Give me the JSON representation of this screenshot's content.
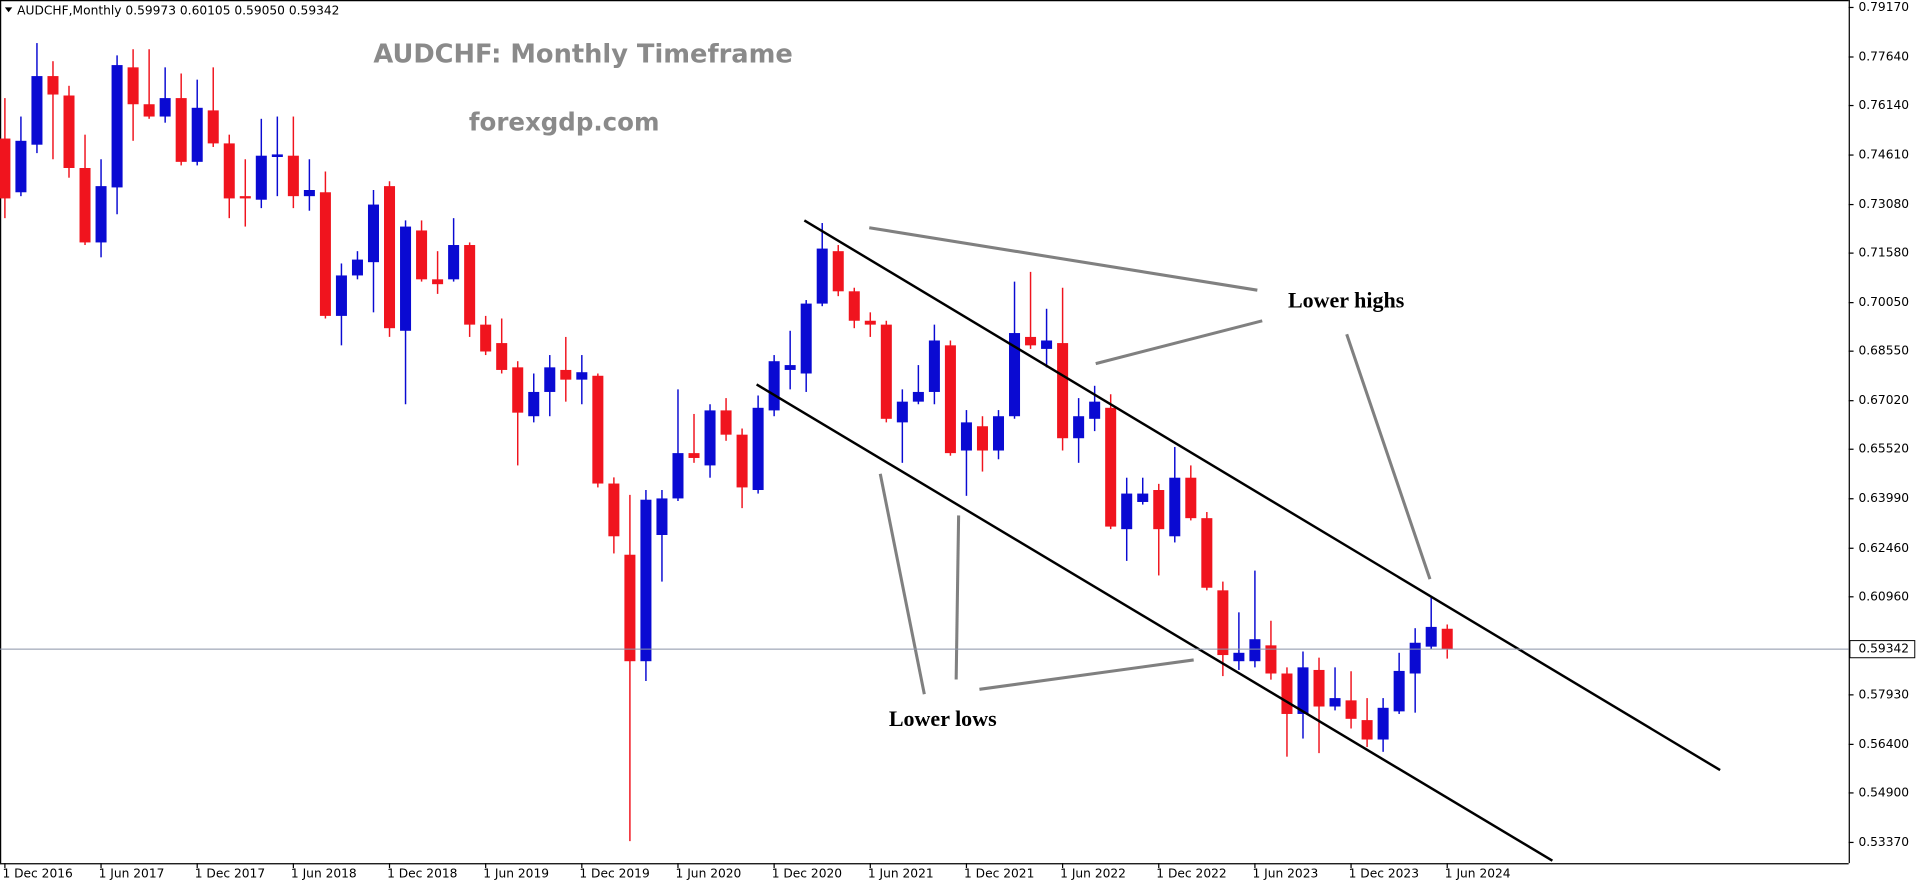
{
  "chart_data": {
    "type": "candlestick",
    "header": "AUDCHF,Monthly  0.59973 0.60105 0.59050 0.59342",
    "title": "AUDCHF: Monthly Timeframe",
    "subtitle": "forexgdp.com",
    "annotations": [
      "Lower highs",
      "Lower lows"
    ],
    "up_color": "#0a0ad2",
    "down_color": "#f0141e",
    "categories": [
      "1 Dec 2016",
      null,
      null,
      null,
      null,
      null,
      "1 Jun 2017",
      null,
      null,
      null,
      null,
      null,
      "1 Dec 2017",
      null,
      null,
      null,
      null,
      null,
      "1 Jun 2018",
      null,
      null,
      null,
      null,
      null,
      "1 Dec 2018",
      null,
      null,
      null,
      null,
      null,
      "1 Jun 2019",
      null,
      null,
      null,
      null,
      null,
      "1 Dec 2019",
      null,
      null,
      null,
      null,
      null,
      "1 Jun 2020",
      null,
      null,
      null,
      null,
      null,
      "1 Dec 2020",
      null,
      null,
      null,
      null,
      null,
      "1 Jun 2021",
      null,
      null,
      null,
      null,
      null,
      "1 Dec 2021",
      null,
      null,
      null,
      null,
      null,
      "1 Jun 2022",
      null,
      null,
      null,
      null,
      null,
      "1 Dec 2022",
      null,
      null,
      null,
      null,
      null,
      "1 Jun 2023",
      null,
      null,
      null,
      null,
      null,
      "1 Dec 2023",
      null,
      null,
      null,
      null,
      null,
      "1 Jun 2024"
    ],
    "open": [
      0.7512,
      0.7346,
      0.7493,
      0.7705,
      0.7645,
      0.7421,
      0.7191,
      0.7361,
      0.7732,
      0.7618,
      0.758,
      0.7637,
      0.744,
      0.7599,
      0.7497,
      0.7334,
      0.7323,
      0.7455,
      0.7459,
      0.7334,
      0.7346,
      0.6964,
      0.7089,
      0.713,
      0.7365,
      0.6918,
      0.7228,
      0.7077,
      0.7077,
      0.7183,
      0.6937,
      0.688,
      0.6805,
      0.6654,
      0.6729,
      0.6797,
      0.6767,
      0.6779,
      0.6446,
      0.6226,
      0.5897,
      0.6287,
      0.64,
      0.654,
      0.6502,
      0.6672,
      0.6597,
      0.6426,
      0.6672,
      0.6797,
      0.6786,
      0.7002,
      0.7164,
      0.704,
      0.6949,
      0.6937,
      0.6635,
      0.6699,
      0.6729,
      0.6873,
      0.6548,
      0.6623,
      0.6548,
      0.6654,
      0.6899,
      0.6862,
      0.688,
      0.6586,
      0.6646,
      0.668,
      0.6305,
      0.6389,
      0.6426,
      0.6283,
      0.6464,
      0.6339,
      0.6116,
      0.5897,
      0.5897,
      0.5946,
      0.5859,
      0.5734,
      0.587,
      0.5757,
      0.5776,
      0.5715,
      0.5655,
      0.5742,
      0.5859,
      0.5942,
      0.59973
    ],
    "high": [
      0.7637,
      0.758,
      0.7807,
      0.7751,
      0.7675,
      0.7524,
      0.7448,
      0.7769,
      0.7788,
      0.7788,
      0.7732,
      0.7713,
      0.7694,
      0.7732,
      0.7524,
      0.7448,
      0.7573,
      0.758,
      0.758,
      0.7448,
      0.741,
      0.7126,
      0.7164,
      0.7353,
      0.738,
      0.7259,
      0.7259,
      0.7164,
      0.7266,
      0.7191,
      0.6964,
      0.6956,
      0.6824,
      0.6786,
      0.6843,
      0.6899,
      0.6843,
      0.6786,
      0.6465,
      0.6411,
      0.6426,
      0.6426,
      0.6737,
      0.6661,
      0.6691,
      0.671,
      0.6616,
      0.6718,
      0.6843,
      0.6918,
      0.7013,
      0.7251,
      0.7183,
      0.7051,
      0.6975,
      0.6949,
      0.6737,
      0.6812,
      0.6937,
      0.6888,
      0.6673,
      0.6654,
      0.6673,
      0.707,
      0.71,
      0.6986,
      0.7051,
      0.671,
      0.6748,
      0.6722,
      0.6464,
      0.6464,
      0.6445,
      0.6559,
      0.6502,
      0.6358,
      0.6143,
      0.6048,
      0.6177,
      0.6022,
      0.5878,
      0.5927,
      0.5908,
      0.5878,
      0.5866,
      0.5783,
      0.5783,
      0.5923,
      0.5999,
      0.6094,
      0.60105
    ],
    "low": [
      0.7266,
      0.7334,
      0.7467,
      0.7448,
      0.7391,
      0.7183,
      0.7145,
      0.7278,
      0.7505,
      0.7573,
      0.7561,
      0.7429,
      0.7429,
      0.7486,
      0.7266,
      0.724,
      0.7297,
      0.7334,
      0.7297,
      0.7289,
      0.6956,
      0.6873,
      0.7077,
      0.6975,
      0.6899,
      0.6691,
      0.707,
      0.7032,
      0.707,
      0.6899,
      0.6843,
      0.6786,
      0.6502,
      0.6635,
      0.6654,
      0.6699,
      0.6691,
      0.6434,
      0.623,
      0.5341,
      0.5836,
      0.6143,
      0.6392,
      0.651,
      0.6464,
      0.6578,
      0.637,
      0.6415,
      0.6654,
      0.6737,
      0.6729,
      0.6994,
      0.7025,
      0.6926,
      0.6899,
      0.6635,
      0.651,
      0.6691,
      0.6691,
      0.6532,
      0.6408,
      0.6483,
      0.6521,
      0.6646,
      0.6862,
      0.6805,
      0.6548,
      0.651,
      0.6608,
      0.6305,
      0.6207,
      0.6381,
      0.6162,
      0.6264,
      0.6332,
      0.6116,
      0.5851,
      0.587,
      0.5878,
      0.584,
      0.5602,
      0.5658,
      0.5613,
      0.5745,
      0.5689,
      0.5632,
      0.5617,
      0.5734,
      0.5738,
      0.5935,
      0.5905
    ],
    "close": [
      0.7327,
      0.7505,
      0.7705,
      0.7648,
      0.7421,
      0.7191,
      0.7365,
      0.7739,
      0.7618,
      0.758,
      0.7637,
      0.744,
      0.7607,
      0.7497,
      0.7327,
      0.7327,
      0.7459,
      0.7463,
      0.7334,
      0.7353,
      0.6964,
      0.7089,
      0.7138,
      0.7308,
      0.6926,
      0.724,
      0.7077,
      0.7062,
      0.7183,
      0.6937,
      0.6854,
      0.6797,
      0.6665,
      0.6729,
      0.6805,
      0.6767,
      0.679,
      0.6446,
      0.6283,
      0.5897,
      0.6396,
      0.64,
      0.654,
      0.6525,
      0.6672,
      0.6597,
      0.6434,
      0.668,
      0.6824,
      0.6812,
      0.7002,
      0.7172,
      0.704,
      0.6949,
      0.6937,
      0.6646,
      0.6699,
      0.6729,
      0.6888,
      0.654,
      0.6635,
      0.6548,
      0.6654,
      0.6911,
      0.6873,
      0.6888,
      0.6586,
      0.6654,
      0.6699,
      0.6313,
      0.6415,
      0.6415,
      0.6305,
      0.6464,
      0.6339,
      0.6124,
      0.5916,
      0.5923,
      0.5965,
      0.5859,
      0.5734,
      0.5878,
      0.5757,
      0.5783,
      0.5719,
      0.5655,
      0.5753,
      0.5867,
      0.5954,
      0.6003,
      0.59342
    ],
    "ylim": [
      0.5273,
      0.794
    ],
    "yticks": [
      {
        "value": 0.7917,
        "label": "0.79170"
      },
      {
        "value": 0.7764,
        "label": "0.77640"
      },
      {
        "value": 0.7614,
        "label": "0.76140"
      },
      {
        "value": 0.7461,
        "label": "0.74610"
      },
      {
        "value": 0.7308,
        "label": "0.73080"
      },
      {
        "value": 0.7158,
        "label": "0.71580"
      },
      {
        "value": 0.7005,
        "label": "0.70050"
      },
      {
        "value": 0.6855,
        "label": "0.68550"
      },
      {
        "value": 0.6702,
        "label": "0.67020"
      },
      {
        "value": 0.6552,
        "label": "0.65520"
      },
      {
        "value": 0.6399,
        "label": "0.63990"
      },
      {
        "value": 0.6246,
        "label": "0.62460"
      },
      {
        "value": 0.6096,
        "label": "0.60960"
      },
      {
        "value": 0.5793,
        "label": "0.57930"
      },
      {
        "value": 0.564,
        "label": "0.56400"
      },
      {
        "value": 0.549,
        "label": "0.54900"
      },
      {
        "value": 0.5337,
        "label": "0.53370"
      }
    ]
  }
}
